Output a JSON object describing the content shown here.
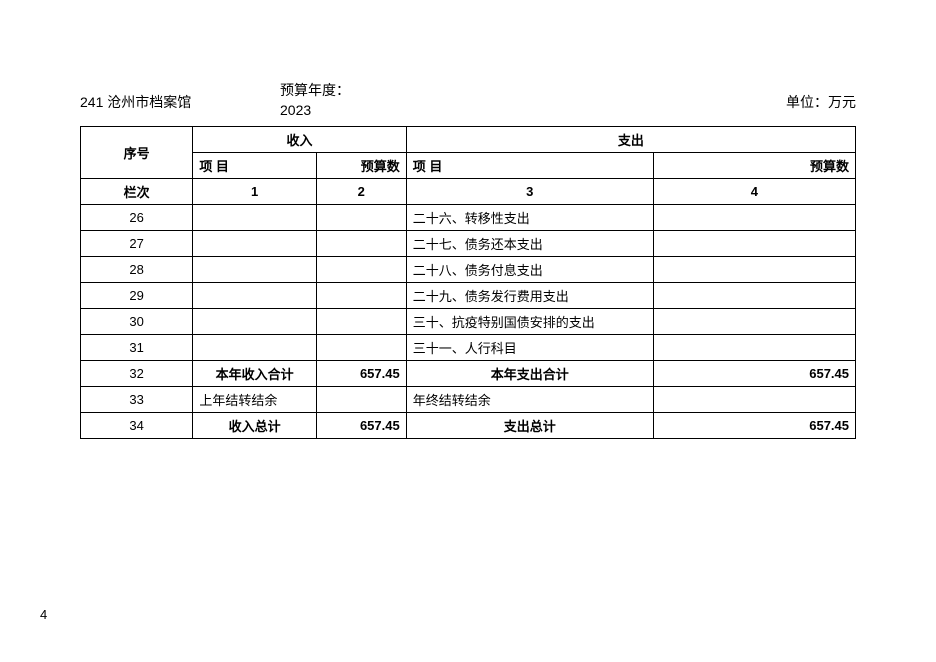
{
  "header": {
    "org_code": "241",
    "org_name": "沧州市档案馆",
    "budget_year_label": "预算年度：",
    "budget_year": "2023",
    "unit_label": "单位：万元"
  },
  "table": {
    "header1": {
      "seq": "序号",
      "income": "收入",
      "expense": "支出"
    },
    "header2": {
      "income_item": "项  目",
      "income_budget": "预算数",
      "expense_item": "项  目",
      "expense_budget": "预算数"
    },
    "column_row": {
      "label": "栏次",
      "c1": "1",
      "c2": "2",
      "c3": "3",
      "c4": "4"
    },
    "rows": [
      {
        "seq": "26",
        "income_item": "",
        "income_budget": "",
        "expense_item": "二十六、转移性支出",
        "expense_budget": ""
      },
      {
        "seq": "27",
        "income_item": "",
        "income_budget": "",
        "expense_item": "二十七、债务还本支出",
        "expense_budget": ""
      },
      {
        "seq": "28",
        "income_item": "",
        "income_budget": "",
        "expense_item": "二十八、债务付息支出",
        "expense_budget": ""
      },
      {
        "seq": "29",
        "income_item": "",
        "income_budget": "",
        "expense_item": "二十九、债务发行费用支出",
        "expense_budget": ""
      },
      {
        "seq": "30",
        "income_item": "",
        "income_budget": "",
        "expense_item": "三十、抗疫特别国债安排的支出",
        "expense_budget": ""
      },
      {
        "seq": "31",
        "income_item": "",
        "income_budget": "",
        "expense_item": "三十一、人行科目",
        "expense_budget": ""
      }
    ],
    "subtotal": {
      "seq": "32",
      "income_item": "本年收入合计",
      "income_budget": "657.45",
      "expense_item": "本年支出合计",
      "expense_budget": "657.45"
    },
    "carryover": {
      "seq": "33",
      "income_item": "上年结转结余",
      "income_budget": "",
      "expense_item": "年终结转结余",
      "expense_budget": ""
    },
    "total": {
      "seq": "34",
      "income_item": "收入总计",
      "income_budget": "657.45",
      "expense_item": "支出总计",
      "expense_budget": "657.45"
    }
  },
  "page_number": "4"
}
